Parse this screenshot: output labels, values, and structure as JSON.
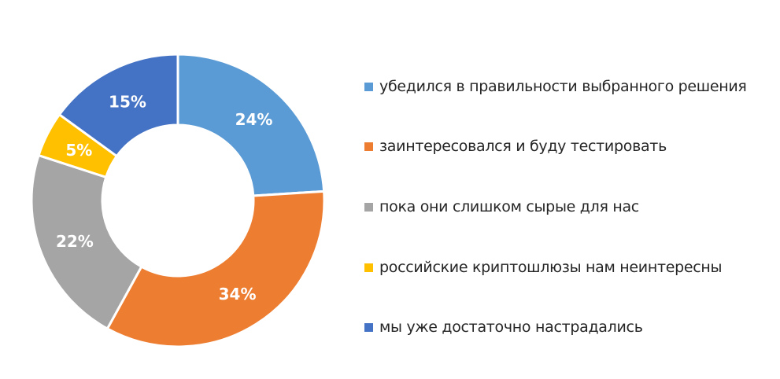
{
  "chart_data": {
    "type": "pie",
    "donut": true,
    "legend_position": "right",
    "labels": [
      "убедился в правильности выбранного решения",
      "заинтересовался и буду тестировать",
      "пока они слишком сырые для нас",
      "российские криптошлюзы нам неинтересны",
      "мы уже достаточно настрадались"
    ],
    "values": [
      24,
      34,
      22,
      5,
      15
    ],
    "data_labels": [
      "24%",
      "34%",
      "22%",
      "5%",
      "15%"
    ],
    "colors": [
      "#5B9BD5",
      "#ED7D31",
      "#A5A5A5",
      "#FFC000",
      "#4472C4"
    ]
  }
}
